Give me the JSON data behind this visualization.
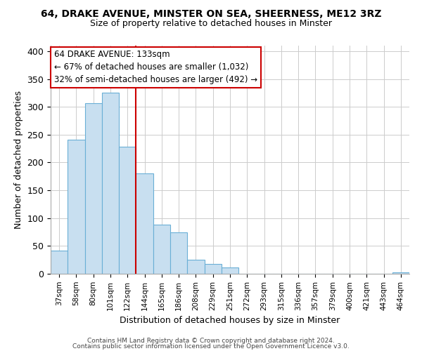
{
  "title": "64, DRAKE AVENUE, MINSTER ON SEA, SHEERNESS, ME12 3RZ",
  "subtitle": "Size of property relative to detached houses in Minster",
  "xlabel": "Distribution of detached houses by size in Minster",
  "ylabel": "Number of detached properties",
  "bar_color": "#c8dff0",
  "bar_edge_color": "#6aafd6",
  "categories": [
    "37sqm",
    "58sqm",
    "80sqm",
    "101sqm",
    "122sqm",
    "144sqm",
    "165sqm",
    "186sqm",
    "208sqm",
    "229sqm",
    "251sqm",
    "272sqm",
    "293sqm",
    "315sqm",
    "336sqm",
    "357sqm",
    "379sqm",
    "400sqm",
    "421sqm",
    "443sqm",
    "464sqm"
  ],
  "values": [
    42,
    241,
    306,
    326,
    228,
    181,
    88,
    75,
    25,
    18,
    11,
    0,
    0,
    0,
    0,
    0,
    0,
    0,
    0,
    0,
    2
  ],
  "vline_x": 4.5,
  "vline_color": "#cc0000",
  "annotation_title": "64 DRAKE AVENUE: 133sqm",
  "annotation_line1": "← 67% of detached houses are smaller (1,032)",
  "annotation_line2": "32% of semi-detached houses are larger (492) →",
  "ylim": [
    0,
    410
  ],
  "yticks": [
    0,
    50,
    100,
    150,
    200,
    250,
    300,
    350,
    400
  ],
  "footer1": "Contains HM Land Registry data © Crown copyright and database right 2024.",
  "footer2": "Contains public sector information licensed under the Open Government Licence v3.0.",
  "background_color": "#ffffff",
  "grid_color": "#cccccc"
}
